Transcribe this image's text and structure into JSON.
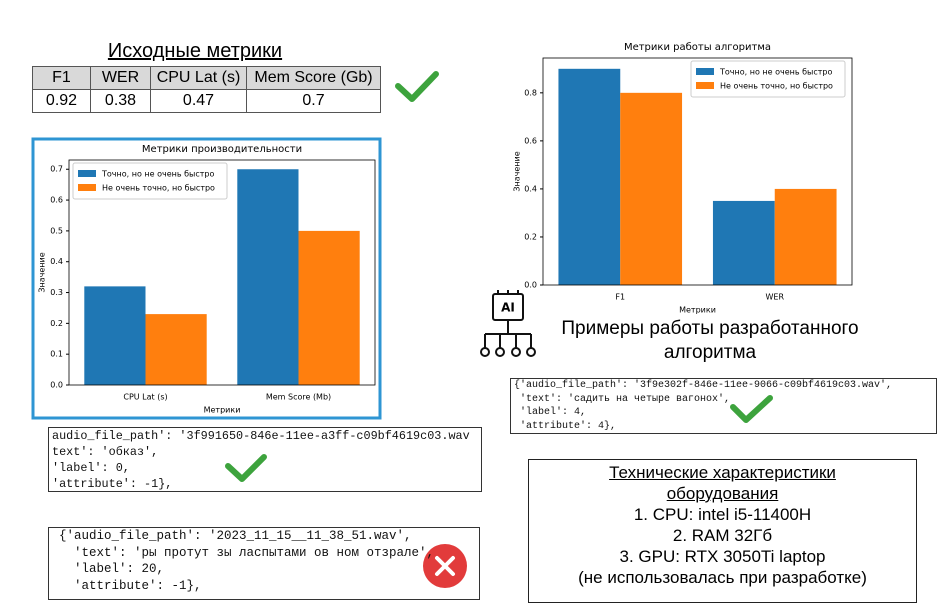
{
  "header": {
    "title": "Исходные метрики"
  },
  "table": {
    "columns": [
      "F1",
      "WER",
      "CPU Lat (s)",
      "Mem Score (Gb)"
    ],
    "rows": [
      [
        0.92,
        0.38,
        0.47,
        0.7
      ]
    ]
  },
  "chart_data": [
    {
      "type": "bar",
      "title": "Метрики производительности",
      "x_label": "Метрики",
      "y_label": "Значение",
      "categories": [
        "CPU Lat (s)",
        "Mem Score (Mb)"
      ],
      "series": [
        {
          "name": "Точно, но не очень быстро",
          "color": "#1f77b4",
          "values": [
            0.32,
            0.7
          ]
        },
        {
          "name": "Не очень точно, но быстро",
          "color": "#ff7f0e",
          "values": [
            0.23,
            0.5
          ]
        }
      ],
      "ylim": [
        0,
        0.73
      ],
      "yticks": [
        {
          "value": 0,
          "label": "0.0"
        },
        0.1,
        0.2,
        0.3,
        0.4,
        0.5,
        0.6,
        0.7
      ],
      "legend": "upper left",
      "grid": false
    },
    {
      "type": "bar",
      "title": "Метрики работы алгоритма",
      "x_label": "Метрики",
      "y_label": "Значение",
      "categories": [
        "F1",
        "WER"
      ],
      "series": [
        {
          "name": "Точно, но не очень быстро",
          "color": "#1f77b4",
          "values": [
            0.9,
            0.35
          ]
        },
        {
          "name": "Не очень точно, но быстро",
          "color": "#ff7f0e",
          "values": [
            0.8,
            0.4
          ]
        }
      ],
      "ylim": [
        0,
        0.945
      ],
      "yticks": [
        {
          "value": 0,
          "label": "0.0"
        },
        0.2,
        0.4,
        0.6,
        0.8
      ],
      "legend": "upper right",
      "grid": false
    }
  ],
  "examples": {
    "icon_label": "AI",
    "title": "Примеры работы разработанного алгоритма",
    "samples": [
      {
        "lines": [
          "{'audio_file_path': '3f9e302f-846e-11ee-9066-c09bf4619c03.wav',",
          " 'text': 'садить на четыре вагонох',",
          " 'label': 4,",
          " 'attribute': 4},"
        ]
      },
      {
        "lines": [
          "audio_file_path': '3f991650-846e-11ee-a3ff-c09bf4619c03.wav",
          "text': 'обказ',",
          "'label': 0,",
          "'attribute': -1},"
        ]
      },
      {
        "lines": [
          "{'audio_file_path': '2023_11_15__11_38_51.wav',",
          "  'text': 'ры протут зы ласпытами ов ном отзрале',",
          "  'label': 20,",
          "  'attribute': -1},"
        ]
      }
    ]
  },
  "hardware": {
    "title": "Технические характеристики оборудования",
    "items": [
      "1. CPU: intel i5-11400H",
      "2. RAM 32Гб",
      "3. GPU: RTX 3050Ti laptop"
    ],
    "note": "(не использовалась при разработке)"
  }
}
